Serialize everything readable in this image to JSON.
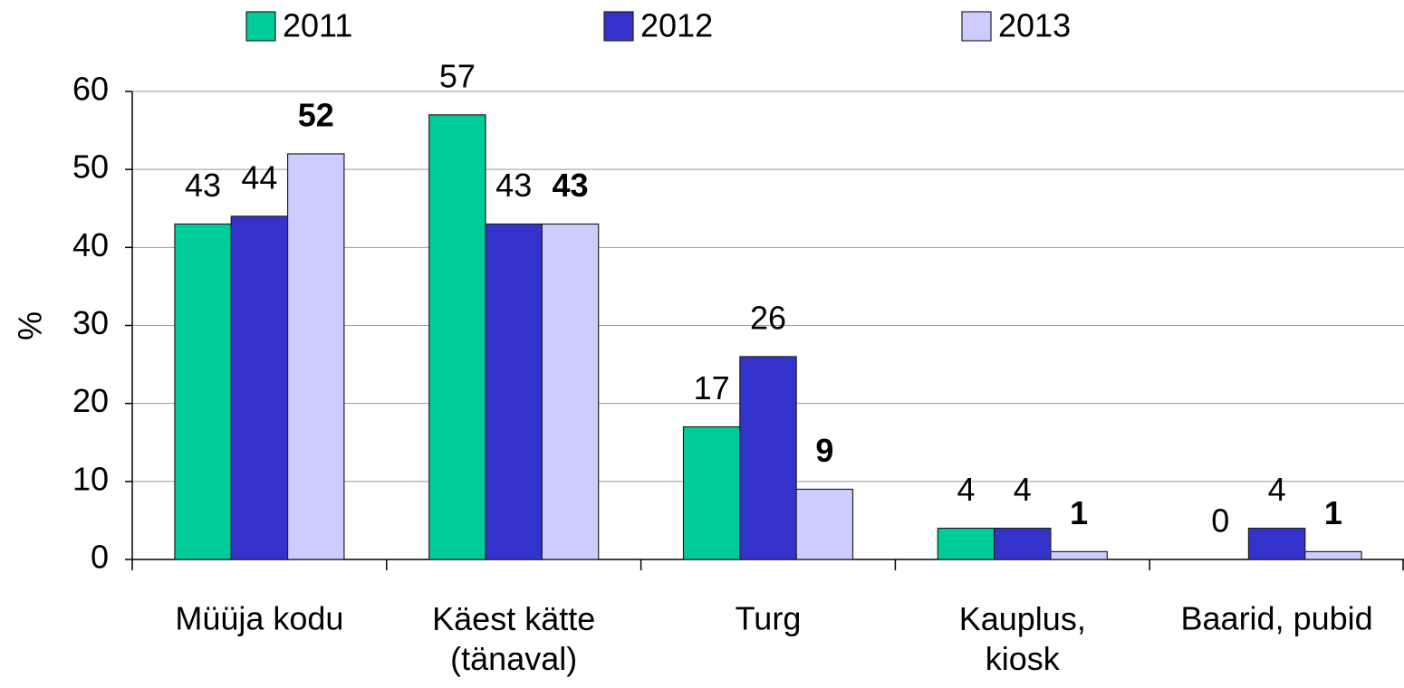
{
  "chart_data": {
    "type": "bar",
    "y_label": "%",
    "categories": [
      "Müüja kodu",
      "Käest kätte\n(tänaval)",
      "Turg",
      "Kauplus,\nkiosk",
      "Baarid, pubid"
    ],
    "series": [
      {
        "name": "2011",
        "color": "#00cc99",
        "values": [
          43,
          57,
          17,
          4,
          0
        ]
      },
      {
        "name": "2012",
        "color": "#3333cc",
        "values": [
          44,
          43,
          26,
          4,
          4
        ]
      },
      {
        "name": "2013",
        "color": "#ccccff",
        "values": [
          52,
          43,
          9,
          1,
          1
        ],
        "label_weight": "bold"
      }
    ],
    "ylim": [
      0,
      60
    ],
    "yticks": [
      0,
      10,
      20,
      30,
      40,
      50,
      60
    ],
    "grid": true,
    "legend": "top"
  }
}
